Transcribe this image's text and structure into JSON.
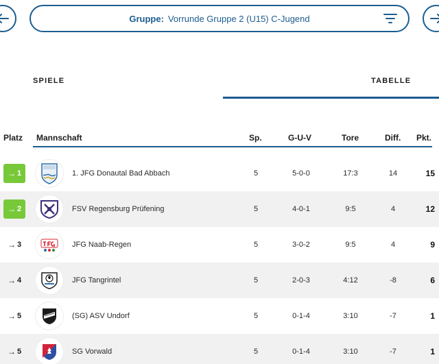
{
  "header": {
    "group_key": "Gruppe:",
    "group_value": "Vorrunde Gruppe 2 (U15) C-Jugend"
  },
  "tabs": [
    {
      "label": "SPIELE",
      "active": false
    },
    {
      "label": "TABELLE",
      "active": true
    }
  ],
  "table": {
    "columns": {
      "platz": "Platz",
      "mannschaft": "Mannschaft",
      "sp": "Sp.",
      "guv": "G-U-V",
      "tore": "Tore",
      "diff": "Diff.",
      "pkt": "Pkt."
    },
    "rows": [
      {
        "rank": "1",
        "status": "up",
        "team": "1. JFG Donautal Bad Abbach",
        "sp": "5",
        "guv": "5-0-0",
        "tore": "17:3",
        "diff": "14",
        "pkt": "15",
        "logo_icon": "donautal-crest-icon"
      },
      {
        "rank": "2",
        "status": "up",
        "team": "FSV Regensburg Prüfening",
        "sp": "5",
        "guv": "4-0-1",
        "tore": "9:5",
        "diff": "4",
        "pkt": "12",
        "logo_icon": "pruefening-crest-icon"
      },
      {
        "rank": "3",
        "status": "same",
        "team": "JFG Naab-Regen",
        "sp": "5",
        "guv": "3-0-2",
        "tore": "9:5",
        "diff": "4",
        "pkt": "9",
        "logo_icon": "naab-regen-crest-icon"
      },
      {
        "rank": "4",
        "status": "same",
        "team": "JFG Tangrintel",
        "sp": "5",
        "guv": "2-0-3",
        "tore": "4:12",
        "diff": "-8",
        "pkt": "6",
        "logo_icon": "tangrintel-crest-icon"
      },
      {
        "rank": "5",
        "status": "same",
        "team": "(SG) ASV Undorf",
        "sp": "5",
        "guv": "0-1-4",
        "tore": "3:10",
        "diff": "-7",
        "pkt": "1",
        "logo_icon": "undorf-crest-icon"
      },
      {
        "rank": "5",
        "status": "same",
        "team": "SG Vorwald",
        "sp": "5",
        "guv": "0-1-4",
        "tore": "3:10",
        "diff": "-7",
        "pkt": "1",
        "logo_icon": "vorwald-crest-icon"
      }
    ]
  },
  "icons": {
    "prev": "arrow-left-icon",
    "next": "arrow-right-icon",
    "filter": "filter-icon",
    "rank_arrow": "→"
  },
  "colors": {
    "accent": "#1b5c8f",
    "promotion": "#78c93a",
    "row_alt": "#f1f1f1"
  }
}
